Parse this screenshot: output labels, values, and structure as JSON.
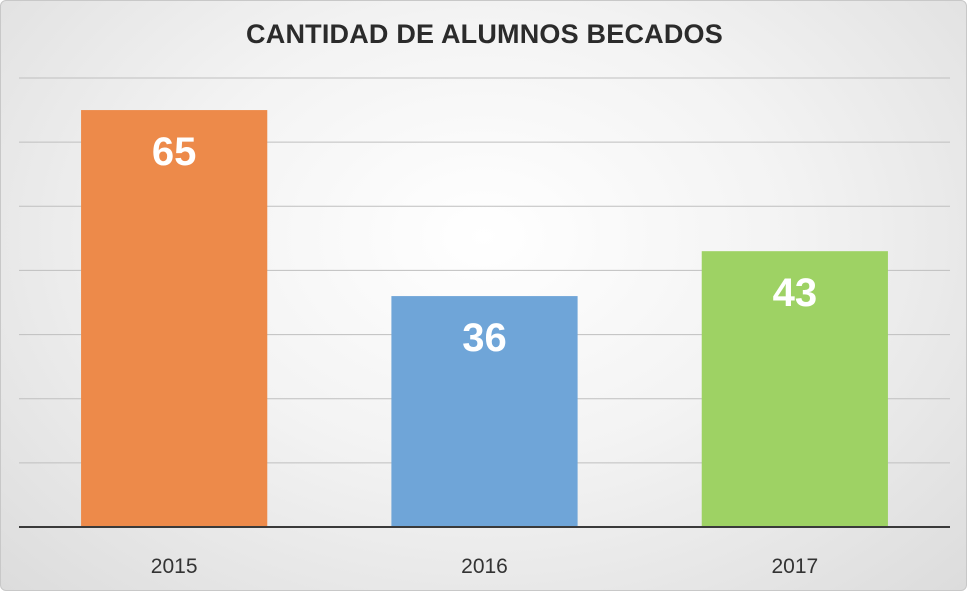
{
  "chart_data": {
    "type": "bar",
    "title": "CANTIDAD DE ALUMNOS BECADOS",
    "categories": [
      "2015",
      "2016",
      "2017"
    ],
    "values": [
      65,
      36,
      43
    ],
    "colors": [
      "#ed8a4a",
      "#6fa5d8",
      "#9ed264"
    ],
    "ylim": [
      0,
      70
    ],
    "grid": true,
    "data_labels": true
  }
}
